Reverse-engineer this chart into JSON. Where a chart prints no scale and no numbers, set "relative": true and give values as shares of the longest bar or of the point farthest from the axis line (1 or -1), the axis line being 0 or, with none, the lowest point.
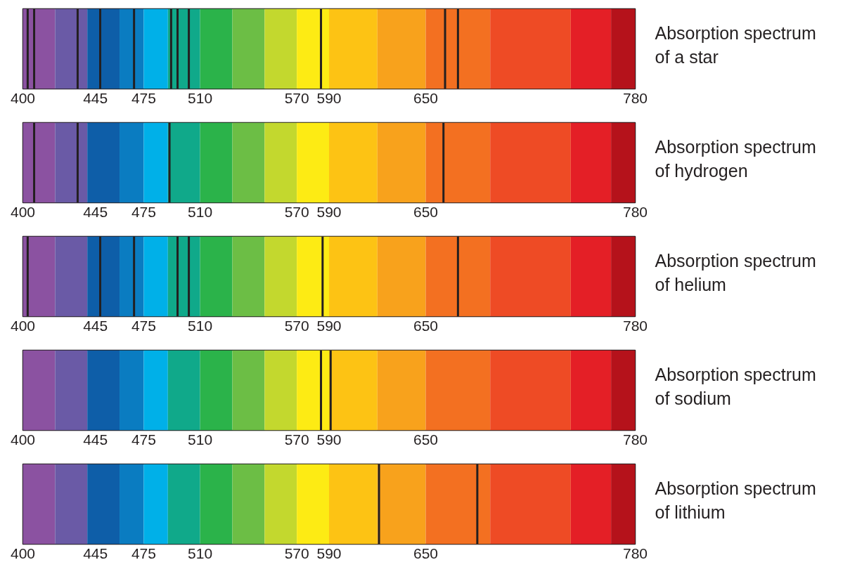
{
  "chart_data": [
    {
      "type": "bar",
      "title": "Absorption spectrum of a star",
      "relative": true,
      "xlim": [
        400,
        780
      ],
      "xticks": [
        400,
        445,
        475,
        510,
        570,
        590,
        650,
        780
      ],
      "color": "#231f20",
      "x": [
        403,
        407,
        434,
        448,
        469,
        492,
        496,
        503,
        585,
        662,
        670
      ],
      "values": [
        1,
        1,
        1,
        1,
        1,
        1,
        1,
        1,
        1,
        1,
        1
      ],
      "bands": [
        {
          "axis": "x",
          "from": 400,
          "to": 420,
          "color": "#8b52a1"
        },
        {
          "axis": "x",
          "from": 420,
          "to": 440,
          "color": "#6a5aa6"
        },
        {
          "axis": "x",
          "from": 440,
          "to": 460,
          "color": "#0e5ea8"
        },
        {
          "axis": "x",
          "from": 460,
          "to": 475,
          "color": "#0a7cc1"
        },
        {
          "axis": "x",
          "from": 475,
          "to": 490,
          "color": "#00b0e8"
        },
        {
          "axis": "x",
          "from": 490,
          "to": 510,
          "color": "#10a98a"
        },
        {
          "axis": "x",
          "from": 510,
          "to": 530,
          "color": "#2bb34a"
        },
        {
          "axis": "x",
          "from": 530,
          "to": 550,
          "color": "#6cbe45"
        },
        {
          "axis": "x",
          "from": 550,
          "to": 570,
          "color": "#c3d82e"
        },
        {
          "axis": "x",
          "from": 570,
          "to": 590,
          "color": "#fdeb14"
        },
        {
          "axis": "x",
          "from": 590,
          "to": 620,
          "color": "#fdc314"
        },
        {
          "axis": "x",
          "from": 620,
          "to": 650,
          "color": "#f8a21c"
        },
        {
          "axis": "x",
          "from": 650,
          "to": 690,
          "color": "#f37021"
        },
        {
          "axis": "x",
          "from": 690,
          "to": 740,
          "color": "#ee4b25"
        },
        {
          "axis": "x",
          "from": 740,
          "to": 765,
          "color": "#e41f26"
        },
        {
          "axis": "x",
          "from": 765,
          "to": 780,
          "color": "#b5121b"
        }
      ]
    },
    {
      "type": "bar",
      "title": "Absorption spectrum of hydrogen",
      "relative": true,
      "xlim": [
        400,
        780
      ],
      "xticks": [
        400,
        445,
        475,
        510,
        570,
        590,
        650,
        780
      ],
      "color": "#231f20",
      "x": [
        407,
        434,
        491,
        661
      ],
      "values": [
        1,
        1,
        1,
        1
      ],
      "bands": [
        {
          "axis": "x",
          "from": 400,
          "to": 420,
          "color": "#8b52a1"
        },
        {
          "axis": "x",
          "from": 420,
          "to": 440,
          "color": "#6a5aa6"
        },
        {
          "axis": "x",
          "from": 440,
          "to": 460,
          "color": "#0e5ea8"
        },
        {
          "axis": "x",
          "from": 460,
          "to": 475,
          "color": "#0a7cc1"
        },
        {
          "axis": "x",
          "from": 475,
          "to": 490,
          "color": "#00b0e8"
        },
        {
          "axis": "x",
          "from": 490,
          "to": 510,
          "color": "#10a98a"
        },
        {
          "axis": "x",
          "from": 510,
          "to": 530,
          "color": "#2bb34a"
        },
        {
          "axis": "x",
          "from": 530,
          "to": 550,
          "color": "#6cbe45"
        },
        {
          "axis": "x",
          "from": 550,
          "to": 570,
          "color": "#c3d82e"
        },
        {
          "axis": "x",
          "from": 570,
          "to": 590,
          "color": "#fdeb14"
        },
        {
          "axis": "x",
          "from": 590,
          "to": 620,
          "color": "#fdc314"
        },
        {
          "axis": "x",
          "from": 620,
          "to": 650,
          "color": "#f8a21c"
        },
        {
          "axis": "x",
          "from": 650,
          "to": 690,
          "color": "#f37021"
        },
        {
          "axis": "x",
          "from": 690,
          "to": 740,
          "color": "#ee4b25"
        },
        {
          "axis": "x",
          "from": 740,
          "to": 765,
          "color": "#e41f26"
        },
        {
          "axis": "x",
          "from": 765,
          "to": 780,
          "color": "#b5121b"
        }
      ]
    },
    {
      "type": "bar",
      "title": "Absorption spectrum of helium",
      "relative": true,
      "xlim": [
        400,
        780
      ],
      "xticks": [
        400,
        445,
        475,
        510,
        570,
        590,
        650,
        780
      ],
      "color": "#231f20",
      "x": [
        403,
        448,
        469,
        496,
        503,
        586,
        670
      ],
      "values": [
        1,
        1,
        1,
        1,
        1,
        1,
        1
      ],
      "bands": [
        {
          "axis": "x",
          "from": 400,
          "to": 420,
          "color": "#8b52a1"
        },
        {
          "axis": "x",
          "from": 420,
          "to": 440,
          "color": "#6a5aa6"
        },
        {
          "axis": "x",
          "from": 440,
          "to": 460,
          "color": "#0e5ea8"
        },
        {
          "axis": "x",
          "from": 460,
          "to": 475,
          "color": "#0a7cc1"
        },
        {
          "axis": "x",
          "from": 475,
          "to": 490,
          "color": "#00b0e8"
        },
        {
          "axis": "x",
          "from": 490,
          "to": 510,
          "color": "#10a98a"
        },
        {
          "axis": "x",
          "from": 510,
          "to": 530,
          "color": "#2bb34a"
        },
        {
          "axis": "x",
          "from": 530,
          "to": 550,
          "color": "#6cbe45"
        },
        {
          "axis": "x",
          "from": 550,
          "to": 570,
          "color": "#c3d82e"
        },
        {
          "axis": "x",
          "from": 570,
          "to": 590,
          "color": "#fdeb14"
        },
        {
          "axis": "x",
          "from": 590,
          "to": 620,
          "color": "#fdc314"
        },
        {
          "axis": "x",
          "from": 620,
          "to": 650,
          "color": "#f8a21c"
        },
        {
          "axis": "x",
          "from": 650,
          "to": 690,
          "color": "#f37021"
        },
        {
          "axis": "x",
          "from": 690,
          "to": 740,
          "color": "#ee4b25"
        },
        {
          "axis": "x",
          "from": 740,
          "to": 765,
          "color": "#e41f26"
        },
        {
          "axis": "x",
          "from": 765,
          "to": 780,
          "color": "#b5121b"
        }
      ]
    },
    {
      "type": "bar",
      "title": "Absorption spectrum of sodium",
      "relative": true,
      "xlim": [
        400,
        780
      ],
      "xticks": [
        400,
        445,
        475,
        510,
        570,
        590,
        650,
        780
      ],
      "color": "#231f20",
      "x": [
        585,
        591
      ],
      "values": [
        1,
        1
      ],
      "bands": [
        {
          "axis": "x",
          "from": 400,
          "to": 420,
          "color": "#8b52a1"
        },
        {
          "axis": "x",
          "from": 420,
          "to": 440,
          "color": "#6a5aa6"
        },
        {
          "axis": "x",
          "from": 440,
          "to": 460,
          "color": "#0e5ea8"
        },
        {
          "axis": "x",
          "from": 460,
          "to": 475,
          "color": "#0a7cc1"
        },
        {
          "axis": "x",
          "from": 475,
          "to": 490,
          "color": "#00b0e8"
        },
        {
          "axis": "x",
          "from": 490,
          "to": 510,
          "color": "#10a98a"
        },
        {
          "axis": "x",
          "from": 510,
          "to": 530,
          "color": "#2bb34a"
        },
        {
          "axis": "x",
          "from": 530,
          "to": 550,
          "color": "#6cbe45"
        },
        {
          "axis": "x",
          "from": 550,
          "to": 570,
          "color": "#c3d82e"
        },
        {
          "axis": "x",
          "from": 570,
          "to": 590,
          "color": "#fdeb14"
        },
        {
          "axis": "x",
          "from": 590,
          "to": 620,
          "color": "#fdc314"
        },
        {
          "axis": "x",
          "from": 620,
          "to": 650,
          "color": "#f8a21c"
        },
        {
          "axis": "x",
          "from": 650,
          "to": 690,
          "color": "#f37021"
        },
        {
          "axis": "x",
          "from": 690,
          "to": 740,
          "color": "#ee4b25"
        },
        {
          "axis": "x",
          "from": 740,
          "to": 765,
          "color": "#e41f26"
        },
        {
          "axis": "x",
          "from": 765,
          "to": 780,
          "color": "#b5121b"
        }
      ]
    },
    {
      "type": "bar",
      "title": "Absorption spectrum of lithium",
      "relative": true,
      "xlim": [
        400,
        780
      ],
      "xticks": [
        400,
        445,
        475,
        510,
        570,
        590,
        650,
        780
      ],
      "color": "#231f20",
      "x": [
        621,
        682
      ],
      "values": [
        1,
        1
      ],
      "bands": [
        {
          "axis": "x",
          "from": 400,
          "to": 420,
          "color": "#8b52a1"
        },
        {
          "axis": "x",
          "from": 420,
          "to": 440,
          "color": "#6a5aa6"
        },
        {
          "axis": "x",
          "from": 440,
          "to": 460,
          "color": "#0e5ea8"
        },
        {
          "axis": "x",
          "from": 460,
          "to": 475,
          "color": "#0a7cc1"
        },
        {
          "axis": "x",
          "from": 475,
          "to": 490,
          "color": "#00b0e8"
        },
        {
          "axis": "x",
          "from": 490,
          "to": 510,
          "color": "#10a98a"
        },
        {
          "axis": "x",
          "from": 510,
          "to": 530,
          "color": "#2bb34a"
        },
        {
          "axis": "x",
          "from": 530,
          "to": 550,
          "color": "#6cbe45"
        },
        {
          "axis": "x",
          "from": 550,
          "to": 570,
          "color": "#c3d82e"
        },
        {
          "axis": "x",
          "from": 570,
          "to": 590,
          "color": "#fdeb14"
        },
        {
          "axis": "x",
          "from": 590,
          "to": 620,
          "color": "#fdc314"
        },
        {
          "axis": "x",
          "from": 620,
          "to": 650,
          "color": "#f8a21c"
        },
        {
          "axis": "x",
          "from": 650,
          "to": 690,
          "color": "#f37021"
        },
        {
          "axis": "x",
          "from": 690,
          "to": 740,
          "color": "#ee4b25"
        },
        {
          "axis": "x",
          "from": 740,
          "to": 765,
          "color": "#e41f26"
        },
        {
          "axis": "x",
          "from": 765,
          "to": 780,
          "color": "#b5121b"
        }
      ]
    }
  ]
}
